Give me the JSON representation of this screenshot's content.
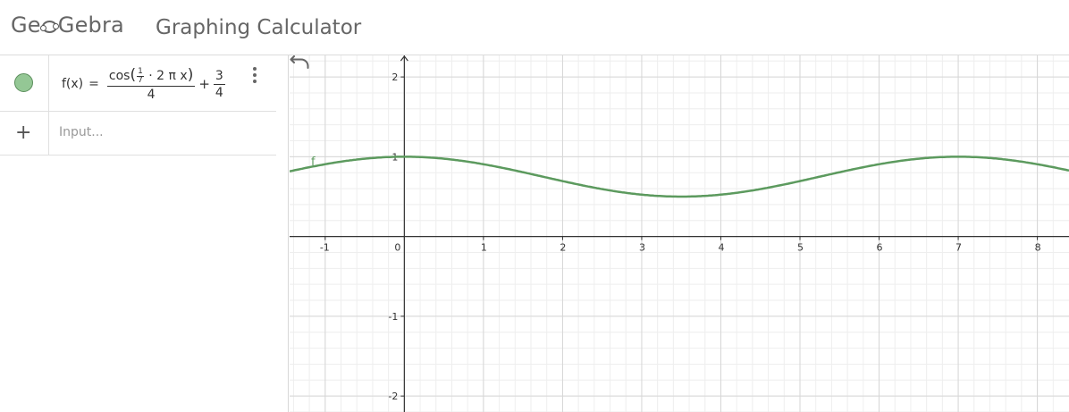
{
  "header": {
    "logo_text_left": "Ge",
    "logo_text_right": "Gebra",
    "app_title": "Graphing Calculator"
  },
  "algebra": {
    "items": [
      {
        "marble_color": "#94c795",
        "lhs": "f(x)",
        "equals": "=",
        "numerator_func": "cos",
        "inner_frac_num": "1",
        "inner_frac_den": "7",
        "inner_rest": "· 2 π x",
        "denominator": "4",
        "plus": "+",
        "const_num": "3",
        "const_den": "4"
      }
    ],
    "input": {
      "placeholder": "Input..."
    },
    "icons": {
      "add": "plus-icon",
      "menu": "more-vert-icon",
      "undo": "undo-icon"
    }
  },
  "graph": {
    "x_ticks": [
      "-1",
      "0",
      "1",
      "2",
      "3",
      "4",
      "5",
      "6",
      "7",
      "8"
    ],
    "y_ticks": [
      "2",
      "1",
      "-1",
      "-2"
    ],
    "x_tick_values": [
      -1,
      0,
      1,
      2,
      3,
      4,
      5,
      6,
      7,
      8
    ],
    "y_tick_values": [
      2,
      1,
      -1,
      -2
    ],
    "x_range": [
      -1.45,
      8.4
    ],
    "y_range": [
      -2.2,
      2.27
    ],
    "function_label": "f",
    "curve_color": "#5c9a5e",
    "axis_color": "#333333",
    "function": {
      "amplitude": 0.25,
      "period": 7,
      "offset": 0.75
    }
  }
}
